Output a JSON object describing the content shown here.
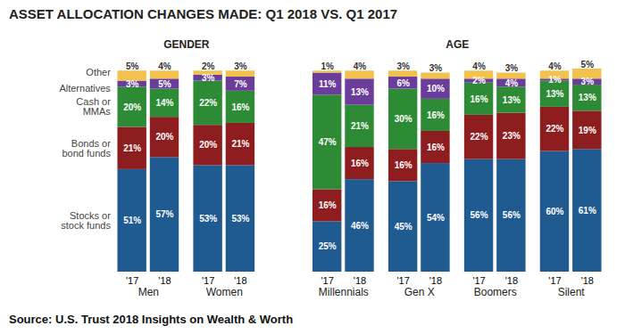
{
  "chart_data": {
    "type": "bar",
    "title": "ASSET ALLOCATION CHANGES MADE: Q1 2018 VS. Q1 2017",
    "caption": "Source: U.S. Trust 2018 Insights on Wealth & Worth",
    "stacked": true,
    "data_labels": true,
    "tick_labels": "x",
    "grid": false,
    "ylim": [
      0,
      101
    ],
    "sections": [
      {
        "label": "GENDER",
        "groups": [
          "Men",
          "Women"
        ]
      },
      {
        "label": "AGE",
        "groups": [
          "Millennials",
          "Gen X",
          "Boomers",
          "Silent"
        ]
      }
    ],
    "categories": [
      "'17",
      "'18",
      "'17",
      "'18",
      "'17",
      "'18",
      "'17",
      "'18",
      "'17",
      "'18",
      "'17",
      "'18"
    ],
    "series": [
      {
        "name": "Stocks or stock funds",
        "color": "#1f5a91",
        "values": [
          51,
          57,
          53,
          53,
          25,
          46,
          45,
          54,
          56,
          56,
          60,
          61
        ],
        "value_labels": [
          "51%",
          "57%",
          "53%",
          "53%",
          "25%",
          "46%",
          "45%",
          "54%",
          "56%",
          "56%",
          "60%",
          "61%"
        ]
      },
      {
        "name": "Bonds or bond funds",
        "color": "#8e1d20",
        "values": [
          21,
          20,
          20,
          21,
          16,
          16,
          16,
          16,
          22,
          23,
          22,
          19
        ],
        "value_labels": [
          "21%",
          "20%",
          "20%",
          "21%",
          "16%",
          "16%",
          "16%",
          "16%",
          "22%",
          "23%",
          "22%",
          "19%"
        ]
      },
      {
        "name": "Cash or MMAs",
        "color": "#2e8b35",
        "values": [
          20,
          14,
          22,
          16,
          47,
          21,
          30,
          16,
          16,
          13,
          13,
          13
        ],
        "value_labels": [
          "20%",
          "14%",
          "22%",
          "16%",
          "47%",
          "21%",
          "30%",
          "16%",
          "16%",
          "13%",
          "13%",
          "13%"
        ]
      },
      {
        "name": "Alternatives",
        "color": "#6a3d9a",
        "values": [
          3,
          5,
          3,
          7,
          11,
          13,
          6,
          10,
          2,
          4,
          1,
          3
        ],
        "value_labels": [
          "3%",
          "5%",
          "3%",
          "7%",
          "11%",
          "13%",
          "6%",
          "10%",
          "2%",
          "4%",
          "1%",
          "3%"
        ]
      },
      {
        "name": "Other",
        "color": "#f2c14e",
        "values": [
          5,
          4,
          2,
          3,
          1,
          4,
          3,
          3,
          4,
          3,
          4,
          5
        ],
        "value_labels": [
          "5%",
          "4%",
          "2%",
          "3%",
          "1%",
          "4%",
          "3%",
          "3%",
          "4%",
          "3%",
          "4%",
          "5%"
        ]
      }
    ]
  }
}
